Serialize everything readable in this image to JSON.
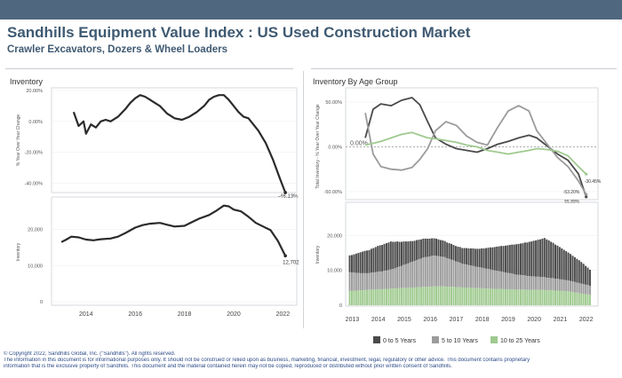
{
  "header": {
    "title": "Sandhills Equipment Value Index : US Used Construction Market",
    "subtitle": "Crawler Excavators, Dozers &  Wheel Loaders"
  },
  "colors": {
    "banner": "#4f6880",
    "title": "#3f5a72",
    "line": "#2b2b2b",
    "age_0_5": "#4a4a4a",
    "age_5_10": "#9b9b9b",
    "age_10_25": "#9fca8f"
  },
  "chart_data": [
    {
      "type": "line",
      "panel_title": "Inventory",
      "ylabel": "% Year Over Year Change",
      "yticks": [
        "20.00%",
        "0.00%",
        "-20.00%",
        "-40.00%"
      ],
      "ylim": [
        -45,
        20
      ],
      "end_label": "-46.13%",
      "series": [
        {
          "x": [
            2013.5,
            2013.7,
            2013.9,
            2014.0,
            2014.2,
            2014.4,
            2014.6,
            2014.8,
            2015.0,
            2015.3,
            2015.6,
            2015.8,
            2016.0,
            2016.2,
            2016.4,
            2016.6,
            2016.8,
            2017.0,
            2017.3,
            2017.6,
            2017.9,
            2018.2,
            2018.5,
            2018.8,
            2019.0,
            2019.2,
            2019.4,
            2019.6,
            2019.8,
            2020.0,
            2020.2,
            2020.4,
            2020.6,
            2020.8,
            2021.0,
            2021.3,
            2021.6,
            2021.9,
            2022.1
          ],
          "y": [
            6,
            -3,
            0,
            -8,
            -2,
            -4,
            0,
            1,
            0,
            3,
            8,
            12,
            15,
            17,
            16,
            14,
            12,
            10,
            5,
            2,
            1,
            3,
            6,
            10,
            14,
            16,
            17,
            17,
            14,
            10,
            6,
            3,
            2,
            -2,
            -6,
            -14,
            -25,
            -38,
            -46.13
          ]
        }
      ]
    },
    {
      "type": "line",
      "ylabel": "Inventory",
      "yticks": [
        "20,000",
        "10,000",
        "0"
      ],
      "ylim": [
        0,
        28000
      ],
      "end_label": "12,702",
      "xticks": [
        "2014",
        "2016",
        "2018",
        "2020",
        "2022"
      ],
      "series": [
        {
          "x": [
            2013.0,
            2013.2,
            2013.4,
            2013.7,
            2014.0,
            2014.3,
            2014.6,
            2015.0,
            2015.3,
            2015.6,
            2016.0,
            2016.3,
            2016.6,
            2017.0,
            2017.3,
            2017.6,
            2018.0,
            2018.3,
            2018.6,
            2019.0,
            2019.3,
            2019.6,
            2019.8,
            2020.0,
            2020.3,
            2020.6,
            2020.9,
            2021.2,
            2021.5,
            2021.8,
            2022.1
          ],
          "y": [
            16500,
            17200,
            18000,
            17800,
            17200,
            17000,
            17300,
            17500,
            18000,
            19000,
            20500,
            21200,
            21600,
            21800,
            21300,
            20800,
            21000,
            22000,
            23000,
            24000,
            25200,
            26600,
            26400,
            25500,
            25000,
            23500,
            21800,
            20800,
            19800,
            16800,
            12702
          ]
        }
      ]
    },
    {
      "type": "line",
      "panel_title": "Inventory By Age Group",
      "ylabel": "Total Inventory - % Year Over Year Change",
      "yticks": [
        "50.00%",
        "0.00%",
        "-50.00%"
      ],
      "ylim": [
        -58,
        55
      ],
      "zero_label": "0.00%",
      "end_labels": [
        "-30.45%",
        "-53.20%",
        "-55.88%"
      ],
      "series": [
        {
          "name": "0 to 5 Years",
          "x": [
            2013.5,
            2013.8,
            2014.1,
            2014.5,
            2014.9,
            2015.3,
            2015.6,
            2015.9,
            2016.2,
            2016.6,
            2017.0,
            2017.4,
            2017.8,
            2018.2,
            2018.6,
            2019.0,
            2019.4,
            2019.8,
            2020.1,
            2020.5,
            2020.9,
            2021.3,
            2021.7,
            2022.0
          ],
          "y": [
            10,
            42,
            48,
            46,
            52,
            55,
            47,
            28,
            10,
            3,
            -2,
            -4,
            -6,
            -2,
            3,
            6,
            10,
            13,
            10,
            1,
            -8,
            -15,
            -30,
            -55.88
          ]
        },
        {
          "name": "5 to 10 Years",
          "x": [
            2013.5,
            2013.8,
            2014.1,
            2014.5,
            2014.9,
            2015.3,
            2015.6,
            2015.9,
            2016.2,
            2016.6,
            2017.0,
            2017.4,
            2017.8,
            2018.2,
            2018.6,
            2019.0,
            2019.4,
            2019.8,
            2020.1,
            2020.5,
            2020.9,
            2021.3,
            2021.7,
            2022.0
          ],
          "y": [
            38,
            -8,
            -22,
            -25,
            -26,
            -23,
            -14,
            -2,
            18,
            28,
            24,
            12,
            5,
            2,
            22,
            40,
            46,
            40,
            18,
            3,
            -12,
            -22,
            -38,
            -53.2
          ]
        },
        {
          "name": "10 to 25 Years",
          "x": [
            2013.5,
            2013.8,
            2014.1,
            2014.5,
            2014.9,
            2015.3,
            2015.6,
            2015.9,
            2016.2,
            2016.6,
            2017.0,
            2017.4,
            2017.8,
            2018.2,
            2018.6,
            2019.0,
            2019.4,
            2019.8,
            2020.1,
            2020.5,
            2020.9,
            2021.3,
            2021.7,
            2022.0
          ],
          "y": [
            2,
            4,
            6,
            10,
            14,
            16,
            13,
            10,
            9,
            7,
            5,
            2,
            0,
            -4,
            -6,
            -8,
            -6,
            -4,
            -2,
            -3,
            -5,
            -10,
            -22,
            -30.45
          ]
        }
      ]
    },
    {
      "type": "bar",
      "ylabel": "Inventory",
      "yticks": [
        "20,000",
        "10,000",
        "0"
      ],
      "ylim": [
        0,
        28000
      ],
      "xticks": [
        "2013",
        "2014",
        "2015",
        "2016",
        "2017",
        "2018",
        "2019",
        "2020",
        "2021",
        "2022"
      ],
      "x_start": 2012.9,
      "x_step": 0.0833,
      "stacked": true,
      "series": [
        {
          "name": "0 to 5 Years",
          "values": [
            4800,
            5000,
            5200,
            5500,
            5700,
            6000,
            6200,
            6400,
            6500,
            6600,
            6800,
            7000,
            7200,
            7400,
            7500,
            7600,
            7700,
            7800,
            7900,
            8000,
            7800,
            7600,
            7400,
            7100,
            6900,
            6700,
            6500,
            6300,
            6100,
            5900,
            5800,
            5700,
            5600,
            5500,
            5400,
            5300,
            5200,
            5100,
            5000,
            5000,
            4900,
            4800,
            4700,
            4700,
            4600,
            4500,
            4500,
            4500,
            4400,
            4400,
            4400,
            4500,
            4500,
            4600,
            4700,
            4800,
            4900,
            5000,
            5100,
            5200,
            5300,
            5500,
            5700,
            5900,
            6100,
            6300,
            6500,
            6700,
            6900,
            7100,
            7300,
            7500,
            7700,
            7900,
            8100,
            8300,
            8500,
            8700,
            8900,
            9000,
            9200,
            9400,
            9600,
            9800,
            10000,
            10200,
            10400,
            10600,
            10800,
            11000,
            11200,
            11000,
            10700,
            10400,
            10100,
            9800,
            9500,
            9200,
            8900,
            8600,
            8300,
            8000,
            7700,
            7400,
            7100,
            6800,
            6500,
            6200,
            5800,
            5400,
            5000,
            4600
          ]
        },
        {
          "name": "5 to 10 Years",
          "values": [
            5400,
            5300,
            5200,
            5100,
            5000,
            4900,
            4900,
            4800,
            4800,
            4800,
            4900,
            4900,
            5000,
            5000,
            5100,
            5100,
            5200,
            5300,
            5400,
            5500,
            5600,
            5800,
            6000,
            6200,
            6400,
            6600,
            6800,
            7000,
            7200,
            7400,
            7600,
            7800,
            8000,
            8200,
            8400,
            8500,
            8600,
            8700,
            8800,
            8800,
            8800,
            8700,
            8600,
            8500,
            8400,
            8200,
            8000,
            7800,
            7600,
            7400,
            7200,
            7000,
            6800,
            6700,
            6600,
            6500,
            6400,
            6300,
            6200,
            6100,
            6000,
            5900,
            5800,
            5700,
            5600,
            5500,
            5400,
            5300,
            5200,
            5100,
            5000,
            4900,
            4800,
            4700,
            4600,
            4500,
            4400,
            4300,
            4200,
            4200,
            4100,
            4100,
            4000,
            4000,
            3900,
            3900,
            3800,
            3800,
            3700,
            3700,
            3700,
            3600,
            3600,
            3500,
            3500,
            3400,
            3400,
            3300,
            3300,
            3200,
            3200,
            3100,
            3100,
            3000,
            3000,
            2900,
            2900,
            2800,
            2800,
            2700,
            2700,
            2600
          ]
        },
        {
          "name": "10 to 25 Years",
          "values": [
            4100,
            4100,
            4200,
            4200,
            4300,
            4300,
            4300,
            4400,
            4400,
            4400,
            4500,
            4500,
            4500,
            4600,
            4600,
            4600,
            4700,
            4700,
            4700,
            4800,
            4800,
            4800,
            4900,
            4900,
            4900,
            5000,
            5000,
            5000,
            5100,
            5100,
            5100,
            5200,
            5200,
            5200,
            5300,
            5300,
            5300,
            5300,
            5400,
            5400,
            5400,
            5400,
            5400,
            5400,
            5400,
            5300,
            5300,
            5300,
            5300,
            5200,
            5200,
            5200,
            5100,
            5100,
            5100,
            5000,
            5000,
            5000,
            4900,
            4900,
            4900,
            4900,
            4800,
            4800,
            4800,
            4800,
            4700,
            4700,
            4700,
            4700,
            4700,
            4600,
            4600,
            4600,
            4600,
            4600,
            4500,
            4500,
            4500,
            4500,
            4500,
            4500,
            4400,
            4400,
            4400,
            4400,
            4400,
            4400,
            4400,
            4400,
            4400,
            4300,
            4300,
            4300,
            4300,
            4200,
            4200,
            4200,
            4100,
            4100,
            4000,
            4000,
            3900,
            3800,
            3700,
            3600,
            3500,
            3400,
            3300,
            3200,
            3100,
            3000
          ]
        }
      ],
      "legend": [
        "0 to 5 Years",
        "5 to 10 Years",
        "10 to 25 Years"
      ]
    }
  ],
  "footer": {
    "line1": "© Copyright 2022, Sandhills Global, Inc. (\"Sandhills\"). All rights reserved.",
    "line2": "The information in this document is for informational purposes only.  It should not be construed or relied upon as business, marketing, financial, investment, legal, regulatory or other advice. This document contains proprietary",
    "line3": "information that is the exclusive property of Sandhills. This document and the material contained herein may not be copied, reproduced or distributed without prior written consent of Sandhills."
  }
}
